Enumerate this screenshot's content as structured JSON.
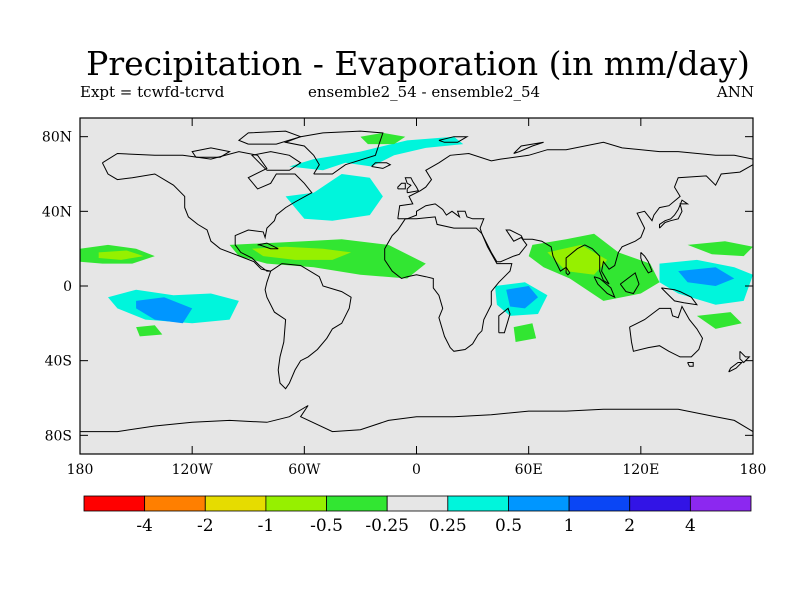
{
  "header": {
    "title": "Precipitation - Evaporation (in mm/day)",
    "experiment": "Expt = tcwfd-tcrvd",
    "comparison": "ensemble2_54 - ensemble2_54",
    "season": "ANN"
  },
  "map": {
    "projection": "cylindrical-equidistant",
    "lon_range": [
      -180,
      180
    ],
    "lat_range": [
      -90,
      90
    ],
    "background_color": "#e6e6e6",
    "x_ticks": [
      {
        "value": -180,
        "label": "180"
      },
      {
        "value": -120,
        "label": "120W"
      },
      {
        "value": -60,
        "label": "60W"
      },
      {
        "value": 0,
        "label": "0"
      },
      {
        "value": 60,
        "label": "60E"
      },
      {
        "value": 120,
        "label": "120E"
      },
      {
        "value": 180,
        "label": "180"
      }
    ],
    "y_ticks": [
      {
        "value": 80,
        "label": "80N"
      },
      {
        "value": 40,
        "label": "40N"
      },
      {
        "value": 0,
        "label": "0"
      },
      {
        "value": -40,
        "label": "40S"
      },
      {
        "value": -80,
        "label": "80S"
      }
    ]
  },
  "colorbar": {
    "colors": [
      "#ff0000",
      "#ff7f00",
      "#e6dc00",
      "#96f000",
      "#32e632",
      "#e6e6e6",
      "#00f5dc",
      "#0096ff",
      "#0a46f5",
      "#3214e6",
      "#8c28f0"
    ],
    "labels": [
      "-4",
      "-2",
      "-1",
      "-0.5",
      "-0.25",
      "0.25",
      "0.5",
      "1",
      "2",
      "4"
    ]
  },
  "chart_data": {
    "type": "contour-map",
    "variable": "Precipitation - Evaporation",
    "units": "mm/day",
    "levels": [
      -4,
      -2,
      -1,
      -0.5,
      -0.25,
      0.25,
      0.5,
      1,
      2,
      4
    ],
    "regions": [
      {
        "name": "arctic-north-atlantic",
        "band": "0.25 to 0.5",
        "color": "#00f5dc",
        "points": [
          [
            -68,
            64
          ],
          [
            -50,
            62
          ],
          [
            -38,
            66
          ],
          [
            -24,
            64
          ],
          [
            -12,
            70
          ],
          [
            5,
            74
          ],
          [
            25,
            76
          ],
          [
            20,
            80
          ],
          [
            -5,
            78
          ],
          [
            -30,
            72
          ],
          [
            -55,
            68
          ]
        ]
      },
      {
        "name": "greenland-sea-patch",
        "band": "-0.25 to -0.5",
        "color": "#32e632",
        "points": [
          [
            -30,
            80
          ],
          [
            -18,
            82
          ],
          [
            -6,
            80
          ],
          [
            -12,
            76
          ],
          [
            -26,
            76
          ]
        ]
      },
      {
        "name": "north-atlantic-midlat",
        "band": "0.25 to 0.5",
        "color": "#00f5dc",
        "points": [
          [
            -70,
            48
          ],
          [
            -55,
            50
          ],
          [
            -40,
            60
          ],
          [
            -25,
            58
          ],
          [
            -18,
            48
          ],
          [
            -25,
            38
          ],
          [
            -45,
            35
          ],
          [
            -60,
            36
          ]
        ]
      },
      {
        "name": "tropical-atlantic-band",
        "band": "-0.25 to -0.5",
        "color": "#32e632",
        "points": [
          [
            -100,
            22
          ],
          [
            -80,
            23
          ],
          [
            -60,
            24
          ],
          [
            -40,
            25
          ],
          [
            -15,
            22
          ],
          [
            5,
            12
          ],
          [
            -5,
            4
          ],
          [
            -30,
            6
          ],
          [
            -55,
            10
          ],
          [
            -80,
            12
          ],
          [
            -95,
            16
          ]
        ]
      },
      {
        "name": "tropical-atlantic-core",
        "band": "-0.5 to -1",
        "color": "#96f000",
        "points": [
          [
            -88,
            20
          ],
          [
            -70,
            21
          ],
          [
            -50,
            20
          ],
          [
            -35,
            18
          ],
          [
            -45,
            14
          ],
          [
            -65,
            14
          ],
          [
            -82,
            16
          ]
        ]
      },
      {
        "name": "east-pacific-band",
        "band": "-0.25 to -0.5",
        "color": "#32e632",
        "points": [
          [
            -180,
            20
          ],
          [
            -165,
            22
          ],
          [
            -150,
            20
          ],
          [
            -140,
            16
          ],
          [
            -152,
            12
          ],
          [
            -168,
            12
          ],
          [
            -180,
            13
          ]
        ]
      },
      {
        "name": "east-pacific-core",
        "band": "-0.5 to -1",
        "color": "#96f000",
        "points": [
          [
            -170,
            18
          ],
          [
            -155,
            19
          ],
          [
            -146,
            16
          ],
          [
            -158,
            14
          ],
          [
            -170,
            15
          ]
        ]
      },
      {
        "name": "south-pacific-wet",
        "band": "0.25 to 0.5",
        "color": "#00f5dc",
        "points": [
          [
            -165,
            -6
          ],
          [
            -150,
            -2
          ],
          [
            -130,
            -5
          ],
          [
            -110,
            -4
          ],
          [
            -95,
            -8
          ],
          [
            -100,
            -18
          ],
          [
            -120,
            -20
          ],
          [
            -145,
            -18
          ],
          [
            -160,
            -12
          ]
        ]
      },
      {
        "name": "south-pacific-core",
        "band": "0.5 to 1",
        "color": "#0096ff",
        "points": [
          [
            -150,
            -8
          ],
          [
            -135,
            -6
          ],
          [
            -120,
            -12
          ],
          [
            -125,
            -20
          ],
          [
            -140,
            -18
          ],
          [
            -150,
            -12
          ]
        ]
      },
      {
        "name": "south-pacific-dry",
        "band": "-0.25 to -0.5",
        "color": "#32e632",
        "points": [
          [
            -150,
            -22
          ],
          [
            -140,
            -21
          ],
          [
            -136,
            -26
          ],
          [
            -148,
            -27
          ]
        ]
      },
      {
        "name": "indian-ocean-wet",
        "band": "0.25 to 0.5",
        "color": "#00f5dc",
        "points": [
          [
            42,
            0
          ],
          [
            58,
            2
          ],
          [
            70,
            -5
          ],
          [
            65,
            -15
          ],
          [
            50,
            -16
          ],
          [
            43,
            -10
          ]
        ]
      },
      {
        "name": "indian-ocean-core",
        "band": "0.5 to 1",
        "color": "#0096ff",
        "points": [
          [
            48,
            -2
          ],
          [
            60,
            0
          ],
          [
            65,
            -6
          ],
          [
            58,
            -12
          ],
          [
            50,
            -11
          ]
        ]
      },
      {
        "name": "maritime-continent-band",
        "band": "-0.25 to -0.5",
        "color": "#32e632",
        "points": [
          [
            62,
            22
          ],
          [
            80,
            25
          ],
          [
            95,
            28
          ],
          [
            108,
            18
          ],
          [
            125,
            12
          ],
          [
            130,
            2
          ],
          [
            120,
            -4
          ],
          [
            100,
            -8
          ],
          [
            82,
            4
          ],
          [
            68,
            10
          ],
          [
            60,
            16
          ]
        ]
      },
      {
        "name": "maritime-continent-core",
        "band": "-0.5 to -1",
        "color": "#96f000",
        "points": [
          [
            70,
            18
          ],
          [
            88,
            22
          ],
          [
            102,
            14
          ],
          [
            95,
            6
          ],
          [
            80,
            8
          ]
        ]
      },
      {
        "name": "west-pacific-wet",
        "band": "0.25 to 0.5",
        "color": "#00f5dc",
        "points": [
          [
            130,
            12
          ],
          [
            150,
            14
          ],
          [
            170,
            10
          ],
          [
            180,
            6
          ],
          [
            175,
            -8
          ],
          [
            160,
            -10
          ],
          [
            140,
            -4
          ],
          [
            130,
            2
          ]
        ]
      },
      {
        "name": "west-pacific-core",
        "band": "0.5 to 1",
        "color": "#0096ff",
        "points": [
          [
            140,
            8
          ],
          [
            160,
            10
          ],
          [
            170,
            4
          ],
          [
            160,
            0
          ],
          [
            145,
            2
          ]
        ]
      },
      {
        "name": "north-pacific-dry",
        "band": "-0.25 to -0.5",
        "color": "#32e632",
        "points": [
          [
            145,
            22
          ],
          [
            165,
            24
          ],
          [
            180,
            21
          ],
          [
            175,
            16
          ],
          [
            158,
            17
          ]
        ]
      },
      {
        "name": "south-indian-dry",
        "band": "-0.25 to -0.5",
        "color": "#32e632",
        "points": [
          [
            52,
            -22
          ],
          [
            62,
            -20
          ],
          [
            64,
            -28
          ],
          [
            53,
            -30
          ]
        ]
      },
      {
        "name": "coral-sea-dry",
        "band": "-0.25 to -0.5",
        "color": "#32e632",
        "points": [
          [
            150,
            -16
          ],
          [
            168,
            -14
          ],
          [
            174,
            -20
          ],
          [
            160,
            -23
          ]
        ]
      }
    ]
  }
}
